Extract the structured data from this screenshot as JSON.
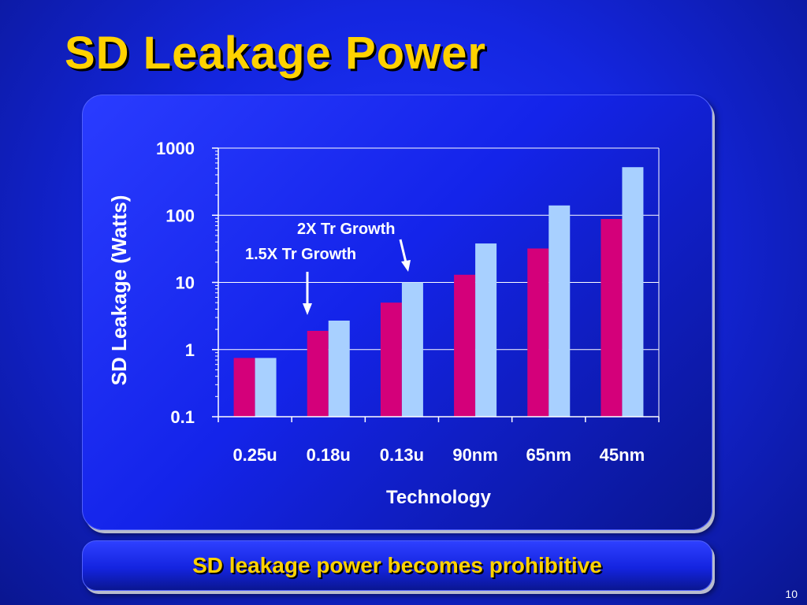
{
  "slide": {
    "title": "SD Leakage Power",
    "caption": "SD leakage power becomes prohibitive",
    "page_number": "10"
  },
  "colors": {
    "background": "#1426e0",
    "title": "#ffd200",
    "series_1": "#d4007a",
    "series_2": "#a8d0ff"
  },
  "chart_data": {
    "type": "bar",
    "title": "",
    "xlabel": "Technology",
    "ylabel": "SD Leakage (Watts)",
    "y_scale": "log",
    "ylim": [
      0.1,
      1000
    ],
    "yticks": [
      "0.1",
      "1",
      "10",
      "100",
      "1000"
    ],
    "ytick_values": [
      0.1,
      1,
      10,
      100,
      1000
    ],
    "grid": true,
    "categories": [
      "0.25u",
      "0.18u",
      "0.13u",
      "90nm",
      "65nm",
      "45nm"
    ],
    "series": [
      {
        "values": [
          0.75,
          1.9,
          5,
          13,
          32,
          88
        ],
        "color": "#d4007a"
      },
      {
        "values": [
          0.75,
          2.7,
          10,
          38,
          140,
          520
        ],
        "color": "#a8d0ff"
      }
    ],
    "annotations": [
      {
        "text": "2X Tr Growth",
        "category": "0.13u",
        "series": 1
      },
      {
        "text": "1.5X Tr Growth",
        "category": "0.18u",
        "series": 0
      }
    ]
  }
}
